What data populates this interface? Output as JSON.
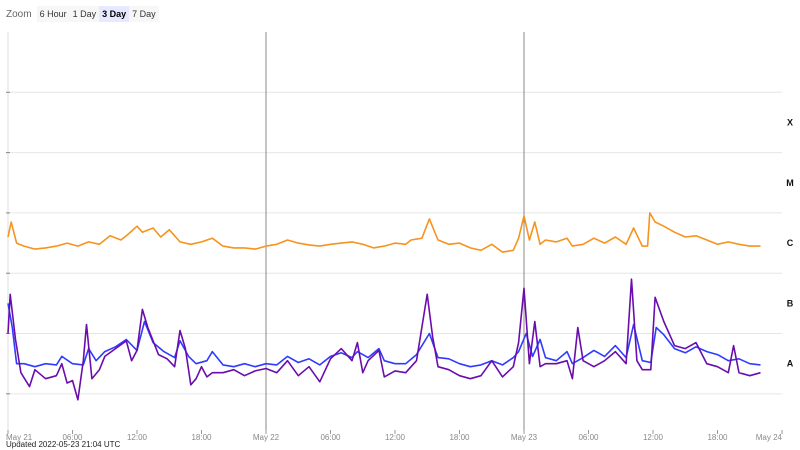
{
  "zoom": {
    "label": "Zoom",
    "buttons": [
      "6 Hour",
      "1 Day",
      "3 Day",
      "7 Day"
    ],
    "active_index": 2,
    "active_color": "#e6e9ff"
  },
  "updated": "Updated 2022-05-23 21:04 UTC",
  "chart_data": {
    "type": "line",
    "x_domain": [
      "May 21 00:00",
      "May 24 00:00"
    ],
    "x_ticks": [
      {
        "hour": 0,
        "label": "May 21"
      },
      {
        "hour": 6,
        "label": "06:00"
      },
      {
        "hour": 12,
        "label": "12:00"
      },
      {
        "hour": 18,
        "label": "18:00"
      },
      {
        "hour": 24,
        "label": "May 22"
      },
      {
        "hour": 30,
        "label": "06:00"
      },
      {
        "hour": 36,
        "label": "12:00"
      },
      {
        "hour": 42,
        "label": "18:00"
      },
      {
        "hour": 48,
        "label": "May 23"
      },
      {
        "hour": 54,
        "label": "06:00"
      },
      {
        "hour": 60,
        "label": "12:00"
      },
      {
        "hour": 66,
        "label": "18:00"
      },
      {
        "hour": 72,
        "label": "May 24"
      }
    ],
    "day_boundaries_hours": [
      24,
      48
    ],
    "y_scale": "log",
    "y_domain_class_units": [
      -0.6,
      6.0
    ],
    "class_labels": [
      {
        "label": "A",
        "value": 0.5
      },
      {
        "label": "B",
        "value": 1.5
      },
      {
        "label": "C",
        "value": 2.5
      },
      {
        "label": "M",
        "value": 3.5
      },
      {
        "label": "X",
        "value": 4.5
      }
    ],
    "series": [
      {
        "color": "#f7931e",
        "points": [
          [
            0,
            2.6
          ],
          [
            0.3,
            2.85
          ],
          [
            0.8,
            2.5
          ],
          [
            1.5,
            2.45
          ],
          [
            2.5,
            2.4
          ],
          [
            3.5,
            2.42
          ],
          [
            4.5,
            2.45
          ],
          [
            5.5,
            2.5
          ],
          [
            6.5,
            2.45
          ],
          [
            7.5,
            2.52
          ],
          [
            8.5,
            2.48
          ],
          [
            9.5,
            2.62
          ],
          [
            10.5,
            2.55
          ],
          [
            11.2,
            2.65
          ],
          [
            12,
            2.78
          ],
          [
            12.5,
            2.68
          ],
          [
            13.5,
            2.75
          ],
          [
            14.2,
            2.6
          ],
          [
            15,
            2.72
          ],
          [
            16,
            2.52
          ],
          [
            17,
            2.48
          ],
          [
            18,
            2.52
          ],
          [
            19,
            2.58
          ],
          [
            20,
            2.45
          ],
          [
            21,
            2.42
          ],
          [
            22,
            2.42
          ],
          [
            23,
            2.4
          ],
          [
            24,
            2.45
          ],
          [
            25,
            2.48
          ],
          [
            26,
            2.55
          ],
          [
            27,
            2.5
          ],
          [
            28,
            2.47
          ],
          [
            29,
            2.45
          ],
          [
            30,
            2.48
          ],
          [
            31,
            2.5
          ],
          [
            32,
            2.52
          ],
          [
            33,
            2.48
          ],
          [
            34,
            2.42
          ],
          [
            35,
            2.45
          ],
          [
            36,
            2.5
          ],
          [
            37,
            2.48
          ],
          [
            37.5,
            2.55
          ],
          [
            38.5,
            2.58
          ],
          [
            39.2,
            2.9
          ],
          [
            40,
            2.55
          ],
          [
            41,
            2.48
          ],
          [
            42,
            2.5
          ],
          [
            43,
            2.42
          ],
          [
            44,
            2.38
          ],
          [
            45,
            2.48
          ],
          [
            46,
            2.35
          ],
          [
            47,
            2.38
          ],
          [
            47.5,
            2.58
          ],
          [
            48,
            2.95
          ],
          [
            48.5,
            2.55
          ],
          [
            49,
            2.85
          ],
          [
            49.5,
            2.48
          ],
          [
            50,
            2.55
          ],
          [
            51,
            2.52
          ],
          [
            52,
            2.58
          ],
          [
            52.5,
            2.45
          ],
          [
            53.5,
            2.48
          ],
          [
            54.5,
            2.58
          ],
          [
            55.5,
            2.5
          ],
          [
            56.5,
            2.6
          ],
          [
            57.5,
            2.48
          ],
          [
            58.2,
            2.75
          ],
          [
            59,
            2.45
          ],
          [
            59.5,
            2.45
          ],
          [
            59.7,
            3.0
          ],
          [
            60.2,
            2.85
          ],
          [
            61,
            2.78
          ],
          [
            62,
            2.68
          ],
          [
            63,
            2.6
          ],
          [
            64,
            2.62
          ],
          [
            65,
            2.55
          ],
          [
            66,
            2.48
          ],
          [
            67,
            2.52
          ],
          [
            68,
            2.48
          ],
          [
            69,
            2.45
          ],
          [
            70,
            2.45
          ]
        ]
      },
      {
        "color": "#2e3cff",
        "points": [
          [
            0,
            1.5
          ],
          [
            0.4,
            1.1
          ],
          [
            0.8,
            0.5
          ],
          [
            1.5,
            0.5
          ],
          [
            2.5,
            0.45
          ],
          [
            3.5,
            0.5
          ],
          [
            4.5,
            0.48
          ],
          [
            5,
            0.62
          ],
          [
            6,
            0.5
          ],
          [
            7,
            0.48
          ],
          [
            7.5,
            0.75
          ],
          [
            8.2,
            0.55
          ],
          [
            9,
            0.7
          ],
          [
            10,
            0.78
          ],
          [
            11,
            0.9
          ],
          [
            12,
            0.72
          ],
          [
            12.7,
            1.2
          ],
          [
            13.5,
            0.85
          ],
          [
            14.5,
            0.7
          ],
          [
            15.5,
            0.6
          ],
          [
            16,
            0.88
          ],
          [
            16.8,
            0.62
          ],
          [
            17.5,
            0.5
          ],
          [
            18.5,
            0.55
          ],
          [
            19,
            0.7
          ],
          [
            20,
            0.48
          ],
          [
            21,
            0.45
          ],
          [
            22,
            0.5
          ],
          [
            23,
            0.45
          ],
          [
            24,
            0.5
          ],
          [
            25,
            0.48
          ],
          [
            26,
            0.62
          ],
          [
            27,
            0.52
          ],
          [
            28,
            0.58
          ],
          [
            29,
            0.48
          ],
          [
            30,
            0.62
          ],
          [
            31,
            0.68
          ],
          [
            32,
            0.6
          ],
          [
            32.5,
            0.7
          ],
          [
            33.5,
            0.6
          ],
          [
            34.5,
            0.75
          ],
          [
            35,
            0.55
          ],
          [
            36,
            0.5
          ],
          [
            37,
            0.5
          ],
          [
            38,
            0.65
          ],
          [
            39.2,
            1.0
          ],
          [
            40,
            0.6
          ],
          [
            41,
            0.58
          ],
          [
            42,
            0.5
          ],
          [
            43,
            0.45
          ],
          [
            44,
            0.48
          ],
          [
            45,
            0.55
          ],
          [
            46,
            0.48
          ],
          [
            47,
            0.6
          ],
          [
            47.5,
            0.7
          ],
          [
            48.2,
            1.0
          ],
          [
            48.8,
            0.62
          ],
          [
            49.5,
            0.9
          ],
          [
            50,
            0.6
          ],
          [
            51,
            0.55
          ],
          [
            52,
            0.7
          ],
          [
            52.5,
            0.5
          ],
          [
            53.5,
            0.6
          ],
          [
            54.5,
            0.72
          ],
          [
            55.5,
            0.62
          ],
          [
            56.5,
            0.8
          ],
          [
            57.5,
            0.6
          ],
          [
            58.2,
            1.15
          ],
          [
            59,
            0.55
          ],
          [
            59.8,
            0.52
          ],
          [
            60.3,
            1.1
          ],
          [
            61,
            0.98
          ],
          [
            62,
            0.75
          ],
          [
            63,
            0.68
          ],
          [
            64,
            0.78
          ],
          [
            65,
            0.7
          ],
          [
            66,
            0.65
          ],
          [
            67,
            0.55
          ],
          [
            68,
            0.58
          ],
          [
            69,
            0.5
          ],
          [
            70,
            0.48
          ]
        ]
      },
      {
        "color": "#6a0dad",
        "points": [
          [
            0,
            1.0
          ],
          [
            0.2,
            1.65
          ],
          [
            0.7,
            0.9
          ],
          [
            1.2,
            0.35
          ],
          [
            2,
            0.12
          ],
          [
            2.5,
            0.4
          ],
          [
            3.5,
            0.25
          ],
          [
            4.5,
            0.3
          ],
          [
            5,
            0.5
          ],
          [
            5.5,
            0.18
          ],
          [
            6,
            0.22
          ],
          [
            6.5,
            -0.1
          ],
          [
            7,
            0.55
          ],
          [
            7.3,
            1.15
          ],
          [
            7.8,
            0.25
          ],
          [
            8.5,
            0.4
          ],
          [
            9,
            0.62
          ],
          [
            10,
            0.75
          ],
          [
            11,
            0.88
          ],
          [
            11.5,
            0.55
          ],
          [
            12,
            0.72
          ],
          [
            12.5,
            1.4
          ],
          [
            13,
            1.1
          ],
          [
            14,
            0.65
          ],
          [
            14.8,
            0.58
          ],
          [
            15.5,
            0.45
          ],
          [
            16,
            1.05
          ],
          [
            16.5,
            0.75
          ],
          [
            17,
            0.15
          ],
          [
            17.5,
            0.25
          ],
          [
            18,
            0.45
          ],
          [
            18.5,
            0.28
          ],
          [
            19,
            0.35
          ],
          [
            20,
            0.35
          ],
          [
            21,
            0.4
          ],
          [
            22,
            0.3
          ],
          [
            23,
            0.38
          ],
          [
            24,
            0.42
          ],
          [
            25,
            0.35
          ],
          [
            26,
            0.55
          ],
          [
            27,
            0.3
          ],
          [
            28,
            0.45
          ],
          [
            29,
            0.2
          ],
          [
            30,
            0.58
          ],
          [
            31,
            0.75
          ],
          [
            32,
            0.55
          ],
          [
            32.5,
            0.85
          ],
          [
            33,
            0.35
          ],
          [
            33.5,
            0.55
          ],
          [
            34.5,
            0.72
          ],
          [
            35,
            0.28
          ],
          [
            36,
            0.38
          ],
          [
            37,
            0.35
          ],
          [
            38,
            0.55
          ],
          [
            39,
            1.65
          ],
          [
            39.5,
            0.95
          ],
          [
            40,
            0.45
          ],
          [
            41,
            0.4
          ],
          [
            42,
            0.3
          ],
          [
            43,
            0.25
          ],
          [
            44,
            0.3
          ],
          [
            45,
            0.55
          ],
          [
            46,
            0.28
          ],
          [
            47,
            0.45
          ],
          [
            47.5,
            0.85
          ],
          [
            48,
            1.75
          ],
          [
            48.5,
            0.5
          ],
          [
            49,
            1.2
          ],
          [
            49.5,
            0.45
          ],
          [
            50,
            0.5
          ],
          [
            51,
            0.5
          ],
          [
            52,
            0.55
          ],
          [
            52.5,
            0.25
          ],
          [
            53,
            1.1
          ],
          [
            53.5,
            0.55
          ],
          [
            54.5,
            0.45
          ],
          [
            55.5,
            0.55
          ],
          [
            56.5,
            0.7
          ],
          [
            57.5,
            0.5
          ],
          [
            58,
            1.9
          ],
          [
            58.5,
            0.55
          ],
          [
            59,
            0.4
          ],
          [
            59.8,
            0.4
          ],
          [
            60.2,
            1.6
          ],
          [
            61,
            1.2
          ],
          [
            62,
            0.8
          ],
          [
            63,
            0.75
          ],
          [
            64,
            0.85
          ],
          [
            65,
            0.5
          ],
          [
            66,
            0.45
          ],
          [
            67,
            0.35
          ],
          [
            67.5,
            0.8
          ],
          [
            68,
            0.35
          ],
          [
            69,
            0.3
          ],
          [
            70,
            0.35
          ]
        ]
      }
    ],
    "grid": true,
    "legend": "none"
  }
}
